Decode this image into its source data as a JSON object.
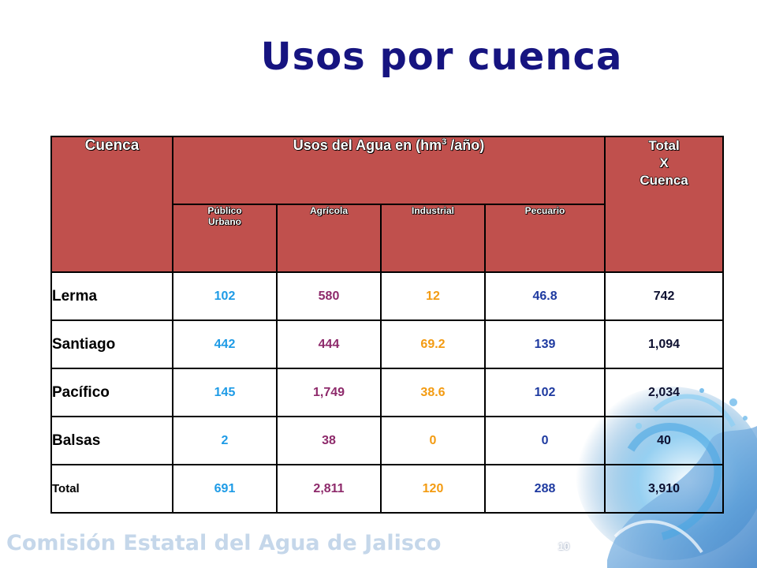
{
  "slide": {
    "title": "Usos por cuenca",
    "footer": "Comisión Estatal del Agua de Jalisco",
    "page_number": "10"
  },
  "table": {
    "header": {
      "cuenca": "Cuenca",
      "usos_prefix": "Usos del Agua en (hm",
      "usos_sup": "3",
      "usos_suffix": " /año)",
      "total_line1": "Total",
      "total_line2": "X",
      "total_line3": "Cuenca",
      "sub1_line1": "Público",
      "sub1_line2": "Urbano",
      "sub2": "Agrícola",
      "sub3": "Industrial",
      "sub4": "Pecuario"
    },
    "rows": [
      {
        "name": "Lerma",
        "publico": "102",
        "agricola": "580",
        "industrial": "12",
        "pecuario": "46.8",
        "total": "742"
      },
      {
        "name": "Santiago",
        "publico": "442",
        "agricola": "444",
        "industrial": "69.2",
        "pecuario": "139",
        "total": "1,094"
      },
      {
        "name": "Pacífico",
        "publico": "145",
        "agricola": "1,749",
        "industrial": "38.6",
        "pecuario": "102",
        "total": "2,034"
      },
      {
        "name": "Balsas",
        "publico": "2",
        "agricola": "38",
        "industrial": "0",
        "pecuario": "0",
        "total": "40"
      },
      {
        "name": "Total",
        "publico": "691",
        "agricola": "2,811",
        "industrial": "120",
        "pecuario": "288",
        "total": "3,910"
      }
    ]
  },
  "colors": {
    "header_bg": "#c0504d",
    "title": "#161480",
    "publico": "#1e9be6",
    "agricola": "#8e2a6b",
    "industrial": "#f39b12",
    "pecuario": "#1e3aa0"
  }
}
